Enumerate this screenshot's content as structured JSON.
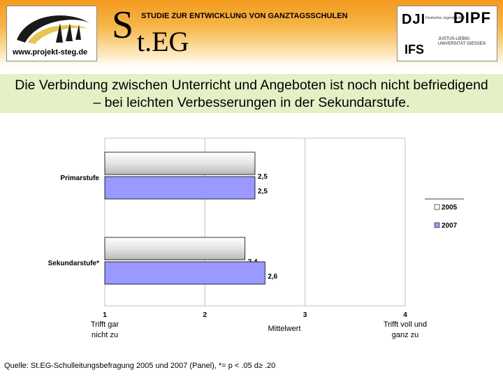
{
  "header": {
    "logo_url": "www.projekt-steg.de",
    "steg_letter": "S",
    "steg_rest": "t.EG",
    "subtitle": "STUDIE ZUR ENTWICKLUNG VON GANZTAGSSCHULEN",
    "partners": {
      "dji": "DJI",
      "dji_sub": "Deutsches Jugendinstitut",
      "dipf": "DIPF",
      "ifs": "IFS",
      "jlu": "JUSTUS-LIEBIG- UNIVERSITÄT GIESSEN"
    }
  },
  "banner": {
    "line1": "Die Verbindung zwischen Unterricht und Angeboten ist noch nicht befriedigend",
    "line2": "– bei leichten Verbesserungen in der Sekundarstufe."
  },
  "chart_data": {
    "type": "bar",
    "orientation": "horizontal",
    "categories": [
      "Primarstufe",
      "Sekundarstufe*"
    ],
    "series": [
      {
        "name": "2005",
        "values": [
          2.5,
          2.4
        ],
        "labels": [
          "2,5",
          "2,4"
        ],
        "color": "#d9d9d9"
      },
      {
        "name": "2007",
        "values": [
          2.5,
          2.6
        ],
        "labels": [
          "2,5",
          "2,6"
        ],
        "color": "#9999ff"
      }
    ],
    "xlim": [
      1,
      4
    ],
    "xticks": [
      "1",
      "2",
      "3",
      "4"
    ],
    "xlabel": "Mittelwert",
    "xlabel_left": "Trifft gar nicht zu",
    "xlabel_right": "Trifft voll und ganz zu",
    "grid": true,
    "legend_position": "right"
  },
  "source": "Quelle: St.EG-Schulleitungsbefragung 2005 und 2007 (Panel), *= p < .05 d≥ .20"
}
